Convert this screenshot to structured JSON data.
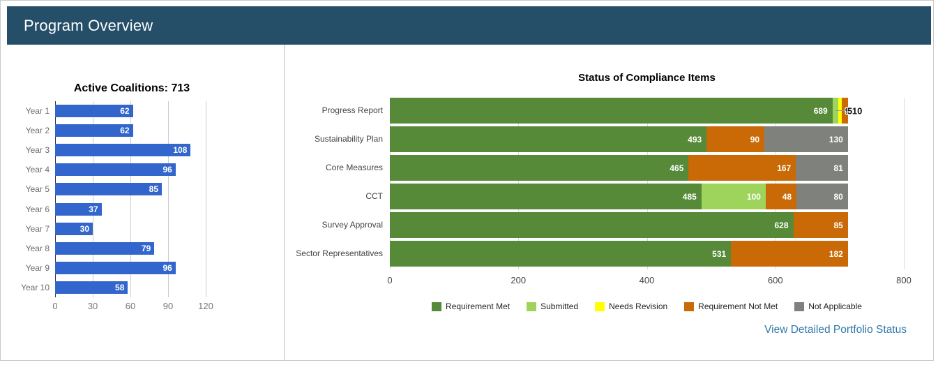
{
  "header": {
    "title": "Program Overview"
  },
  "right_chart_link": "View Detailed Portfolio Status",
  "chart_data": [
    {
      "type": "bar",
      "orientation": "horizontal",
      "title": "Active Coalitions: 713",
      "categories": [
        "Year 1",
        "Year 2",
        "Year 3",
        "Year 4",
        "Year 5",
        "Year 6",
        "Year 7",
        "Year 8",
        "Year 9",
        "Year 10"
      ],
      "values": [
        62,
        62,
        108,
        96,
        85,
        37,
        30,
        79,
        96,
        58
      ],
      "xticks": [
        0,
        30,
        60,
        90,
        120
      ],
      "xlim": [
        0,
        120
      ],
      "bar_color": "#3366cc",
      "value_label_color": "#ffffff",
      "grid": true,
      "legend": "none"
    },
    {
      "type": "bar",
      "stacked": true,
      "orientation": "horizontal",
      "title": "Status of Compliance Items",
      "categories": [
        "Progress Report",
        "Sustainability Plan",
        "Core Measures",
        "CCT",
        "Survey Approval",
        "Sector Representatives"
      ],
      "series": [
        {
          "name": "Requirement Met",
          "color": "#568a39",
          "values": [
            689,
            493,
            465,
            485,
            628,
            531
          ]
        },
        {
          "name": "Submitted",
          "color": "#9ed45b",
          "values": [
            9,
            0,
            0,
            100,
            0,
            0
          ]
        },
        {
          "name": "Needs Revision",
          "color": "#ffff00",
          "values": [
            5,
            0,
            0,
            0,
            0,
            0
          ]
        },
        {
          "name": "Requirement Not Met",
          "color": "#c96a06",
          "values": [
            10,
            90,
            167,
            48,
            85,
            182
          ]
        },
        {
          "name": "Not Applicable",
          "color": "#7f817c",
          "values": [
            0,
            130,
            81,
            80,
            0,
            0
          ]
        }
      ],
      "xticks": [
        0,
        200,
        400,
        600,
        800
      ],
      "xlim": [
        0,
        800
      ],
      "grid": true,
      "legend_position": "bottom",
      "outside_annotations": {
        "row_index": 0,
        "labels": [
          "9",
          "5",
          "10"
        ]
      }
    }
  ]
}
